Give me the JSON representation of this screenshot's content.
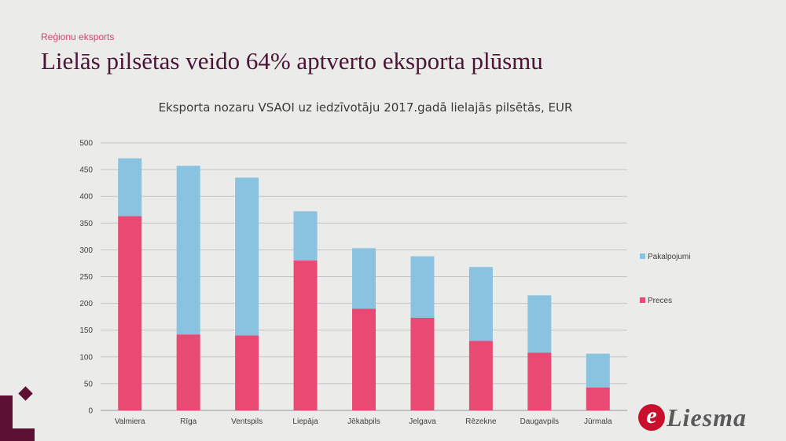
{
  "slide": {
    "section_label": "Reģionu eksports",
    "title": "Lielās pilsētas veido 64% aptverto eksporta plūsmu"
  },
  "brand": {
    "initial": "e",
    "name": "Liesma"
  },
  "chart_data": {
    "type": "bar",
    "stacked": true,
    "title": "Eksporta nozaru VSAOI uz iedzīvotāju 2017.gadā  lielajās pilsētās, EUR",
    "xlabel": "",
    "ylabel": "",
    "categories": [
      "Valmiera",
      "Rīga",
      "Ventspils",
      "Liepāja",
      "Jēkabpils",
      "Jelgava",
      "Rēzekne",
      "Daugavpils",
      "Jūrmala"
    ],
    "series": [
      {
        "name": "Preces",
        "color": "#e84a74",
        "values": [
          363,
          142,
          140,
          280,
          190,
          173,
          130,
          108,
          43
        ]
      },
      {
        "name": "Pakalpojumi",
        "color": "#8ac3e0",
        "values": [
          108,
          315,
          295,
          92,
          113,
          115,
          138,
          107,
          63
        ]
      }
    ],
    "ylim": [
      0,
      500
    ],
    "yticks": [
      0,
      50,
      100,
      150,
      200,
      250,
      300,
      350,
      400,
      450,
      500
    ],
    "grid": true,
    "legend": {
      "position": "right",
      "order": [
        "Pakalpojumi",
        "Preces"
      ]
    }
  },
  "colors": {
    "accent": "#d4426e",
    "title": "#4a1536",
    "logo": "#5c1034"
  }
}
